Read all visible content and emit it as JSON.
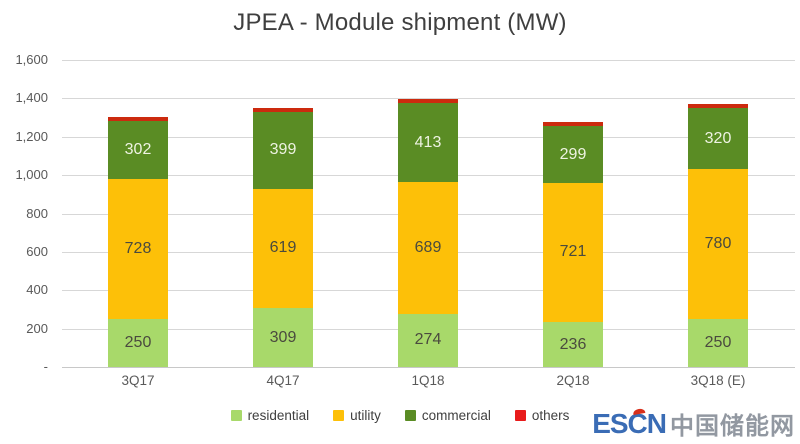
{
  "title": "JPEA - Module shipment (MW)",
  "chart_data": {
    "type": "bar",
    "stacked": true,
    "title": "JPEA - Module shipment (MW)",
    "categories": [
      "3Q17",
      "4Q17",
      "1Q18",
      "2Q18",
      "3Q18 (E)"
    ],
    "series": [
      {
        "name": "residential",
        "color": "#a8d96a",
        "label_color": "#4a4a3e",
        "labeled": true,
        "values": [
          250,
          309,
          274,
          236,
          250
        ]
      },
      {
        "name": "utility",
        "color": "#fdc008",
        "label_color": "#4a4a3e",
        "labeled": true,
        "values": [
          728,
          619,
          689,
          721,
          780
        ]
      },
      {
        "name": "commercial",
        "color": "#5a8c24",
        "label_color": "#eef3e2",
        "labeled": true,
        "values": [
          302,
          399,
          413,
          299,
          320
        ]
      },
      {
        "name": "others",
        "color": "#cc2a0e",
        "label_color": "#ffffff",
        "labeled": false,
        "values": [
          15,
          15,
          15,
          15,
          15
        ]
      }
    ],
    "ylim": [
      0,
      1600
    ],
    "y_ticks": [
      {
        "value": 1600,
        "label": "1,600"
      },
      {
        "value": 1400,
        "label": "1,400"
      },
      {
        "value": 1200,
        "label": "1,200"
      },
      {
        "value": 1000,
        "label": "1,000"
      },
      {
        "value": 800,
        "label": "800"
      },
      {
        "value": 600,
        "label": "600"
      },
      {
        "value": 400,
        "label": "400"
      },
      {
        "value": 200,
        "label": "200"
      },
      {
        "value": 0,
        "label": "-"
      }
    ],
    "grid": true,
    "legend_position": "bottom"
  },
  "watermark": {
    "escn": "ESCN",
    "cn": "中国储能网",
    "escn_color": "#3a6cb5",
    "cn_color": "#9298a1",
    "accent_color": "#d8301c"
  }
}
